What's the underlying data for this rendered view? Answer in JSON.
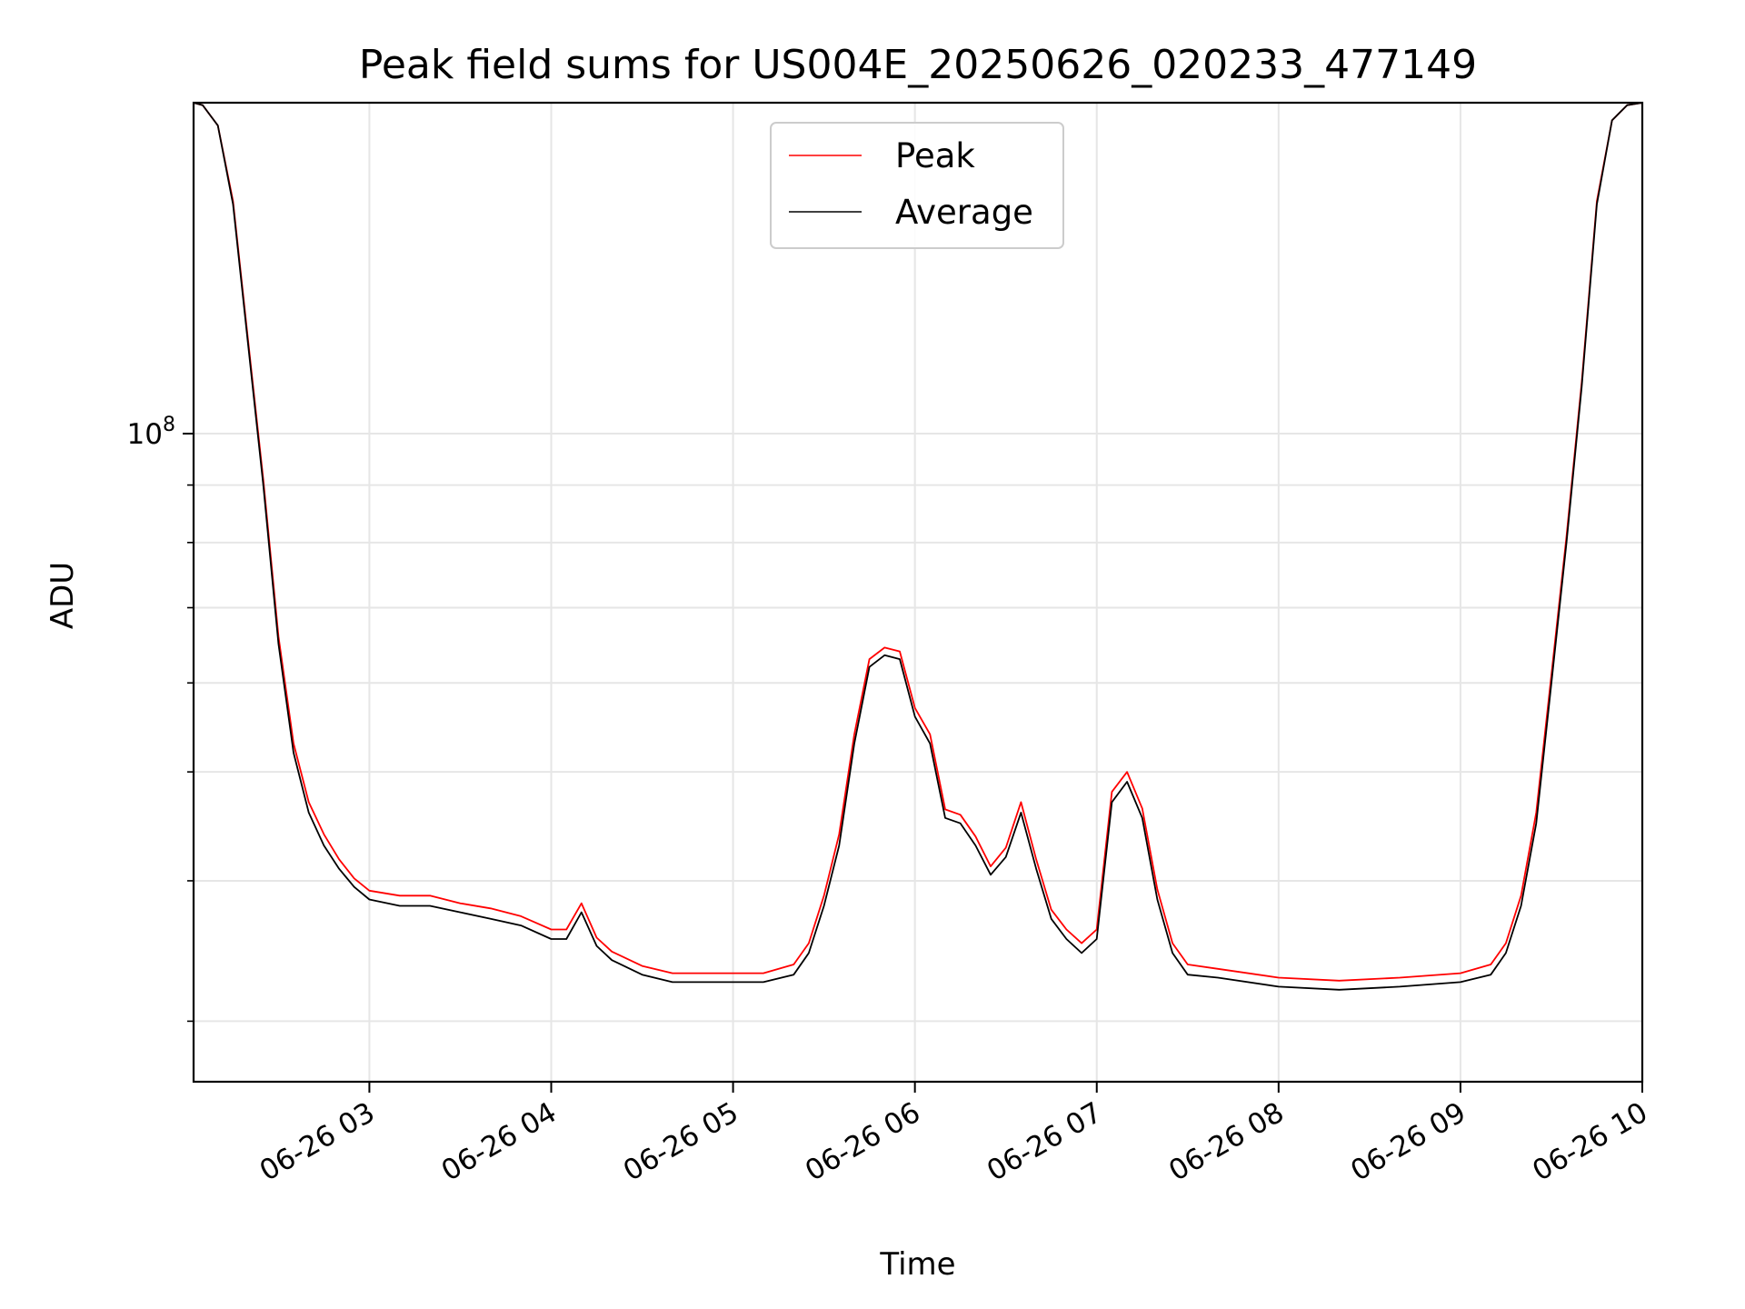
{
  "chart_data": {
    "type": "line",
    "title": "Peak field sums for US004E_20250626_020233_477149",
    "xlabel": "Time",
    "ylabel": "ADU",
    "x_scale": "time",
    "y_scale": "log",
    "xlim": [
      "06-26 02:02",
      "06-26 10:00"
    ],
    "ylim": [
      26500000.0,
      197000000.0
    ],
    "grid": true,
    "legend": "upper center",
    "colors": {
      "Peak": "#ff0000",
      "Average": "#000000"
    },
    "x_ticks": [
      "06-26 03",
      "06-26 04",
      "06-26 05",
      "06-26 06",
      "06-26 07",
      "06-26 08",
      "06-26 09",
      "06-26 10"
    ],
    "y_major_ticks": [
      {
        "value": 100000000.0,
        "base": "10",
        "exp": "8"
      }
    ],
    "y_minor_ticks": [
      30000000.0,
      40000000.0,
      50000000.0,
      60000000.0,
      70000000.0,
      80000000.0,
      90000000.0
    ],
    "x": [
      "06-26 02:02",
      "06-26 02:05",
      "06-26 02:10",
      "06-26 02:15",
      "06-26 02:20",
      "06-26 02:25",
      "06-26 02:30",
      "06-26 02:35",
      "06-26 02:40",
      "06-26 02:45",
      "06-26 02:50",
      "06-26 02:55",
      "06-26 03:00",
      "06-26 03:10",
      "06-26 03:20",
      "06-26 03:30",
      "06-26 03:40",
      "06-26 03:50",
      "06-26 04:00",
      "06-26 04:05",
      "06-26 04:10",
      "06-26 04:15",
      "06-26 04:20",
      "06-26 04:30",
      "06-26 04:40",
      "06-26 04:50",
      "06-26 05:00",
      "06-26 05:10",
      "06-26 05:20",
      "06-26 05:25",
      "06-26 05:30",
      "06-26 05:35",
      "06-26 05:40",
      "06-26 05:45",
      "06-26 05:50",
      "06-26 05:55",
      "06-26 06:00",
      "06-26 06:05",
      "06-26 06:10",
      "06-26 06:15",
      "06-26 06:20",
      "06-26 06:25",
      "06-26 06:30",
      "06-26 06:35",
      "06-26 06:40",
      "06-26 06:45",
      "06-26 06:50",
      "06-26 06:55",
      "06-26 07:00",
      "06-26 07:05",
      "06-26 07:10",
      "06-26 07:15",
      "06-26 07:20",
      "06-26 07:25",
      "06-26 07:30",
      "06-26 07:40",
      "06-26 08:00",
      "06-26 08:20",
      "06-26 08:40",
      "06-26 09:00",
      "06-26 09:10",
      "06-26 09:15",
      "06-26 09:20",
      "06-26 09:25",
      "06-26 09:30",
      "06-26 09:35",
      "06-26 09:40",
      "06-26 09:45",
      "06-26 09:50",
      "06-26 09:55",
      "06-26 10:00"
    ],
    "series": [
      {
        "name": "Average",
        "values": [
          197000000.0,
          196000000.0,
          188000000.0,
          160000000.0,
          120000000.0,
          90000000.0,
          65000000.0,
          52000000.0,
          46000000.0,
          43000000.0,
          41000000.0,
          39500000.0,
          38500000.0,
          38000000.0,
          38000000.0,
          37500000.0,
          37000000.0,
          36500000.0,
          35500000.0,
          35500000.0,
          37500000.0,
          35000000.0,
          34000000.0,
          33000000.0,
          32500000.0,
          32500000.0,
          32500000.0,
          32500000.0,
          33000000.0,
          34500000.0,
          38000000.0,
          43000000.0,
          53000000.0,
          62000000.0,
          63500000.0,
          63000000.0,
          56000000.0,
          53000000.0,
          45500000.0,
          45000000.0,
          43000000.0,
          40500000.0,
          42000000.0,
          46000000.0,
          41000000.0,
          37000000.0,
          35500000.0,
          34500000.0,
          35500000.0,
          47000000.0,
          49000000.0,
          45500000.0,
          38500000.0,
          34500000.0,
          33000000.0,
          32800000.0,
          32200000.0,
          32000000.0,
          32200000.0,
          32500000.0,
          33000000.0,
          34500000.0,
          38000000.0,
          45000000.0,
          60000000.0,
          80000000.0,
          110000000.0,
          160000000.0,
          190000000.0,
          196000000.0,
          197000000.0
        ]
      },
      {
        "name": "Peak",
        "values": [
          197000000.0,
          196000000.0,
          188000000.0,
          161000000.0,
          121000000.0,
          91000000.0,
          66000000.0,
          53000000.0,
          47000000.0,
          44000000.0,
          41800000.0,
          40200000.0,
          39200000.0,
          38800000.0,
          38800000.0,
          38200000.0,
          37800000.0,
          37200000.0,
          36200000.0,
          36200000.0,
          38200000.0,
          35600000.0,
          34600000.0,
          33600000.0,
          33100000.0,
          33100000.0,
          33100000.0,
          33100000.0,
          33700000.0,
          35200000.0,
          38800000.0,
          44000000.0,
          54000000.0,
          63000000.0,
          64500000.0,
          64000000.0,
          57000000.0,
          54000000.0,
          46300000.0,
          45800000.0,
          43800000.0,
          41200000.0,
          42800000.0,
          47000000.0,
          41800000.0,
          37700000.0,
          36200000.0,
          35200000.0,
          36200000.0,
          48000000.0,
          50000000.0,
          46400000.0,
          39300000.0,
          35200000.0,
          33700000.0,
          33400000.0,
          32800000.0,
          32600000.0,
          32800000.0,
          33100000.0,
          33700000.0,
          35200000.0,
          38800000.0,
          46000000.0,
          61000000.0,
          81000000.0,
          111000000.0,
          161000000.0,
          190000000.0,
          196000000.0,
          197000000.0
        ]
      }
    ]
  }
}
